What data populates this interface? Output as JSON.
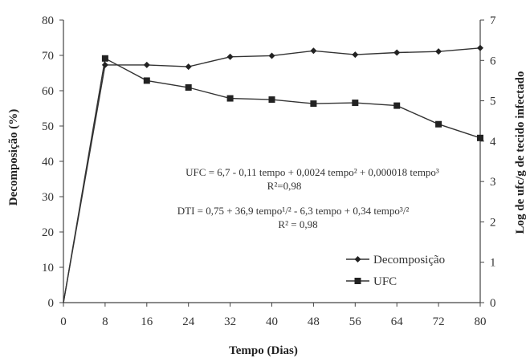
{
  "chart_data": {
    "type": "line",
    "xlabel": "Tempo (Dias)",
    "ylabel": "Decomposição (%)",
    "y2label": "Log de ufc/g de tecido infectado",
    "x": [
      0,
      8,
      16,
      24,
      32,
      40,
      48,
      56,
      64,
      72,
      80
    ],
    "xticks": [
      "0",
      "8",
      "16",
      "24",
      "32",
      "40",
      "48",
      "56",
      "64",
      "72",
      "80"
    ],
    "ylim": [
      0,
      80
    ],
    "yticks": [
      "0",
      "10",
      "20",
      "30",
      "40",
      "50",
      "60",
      "70",
      "80"
    ],
    "y2lim": [
      0,
      7
    ],
    "y2ticks": [
      "0",
      "1",
      "2",
      "3",
      "4",
      "5",
      "6",
      "7"
    ],
    "series": [
      {
        "name": "Decomposição",
        "axis": "left",
        "marker": "diamond",
        "values": [
          0,
          67.3,
          67.3,
          66.8,
          69.6,
          69.9,
          71.3,
          70.2,
          70.8,
          71.1,
          72.1
        ]
      },
      {
        "name": "UFC",
        "axis": "right",
        "marker": "square",
        "values": [
          0,
          6.05,
          5.5,
          5.33,
          5.06,
          5.03,
          4.93,
          4.95,
          4.88,
          4.42,
          4.08
        ]
      }
    ],
    "annotations": [
      "UFC = 6,7 - 0,11 tempo + 0,0024 tempo² + 0,000018 tempo³",
      "R²=0,98",
      "DTI = 0,75 + 36,9 tempo¹/² - 6,3 tempo + 0,34 tempo³/²",
      "R² = 0,98"
    ],
    "legend_position": "bottom-right",
    "grid": false
  }
}
